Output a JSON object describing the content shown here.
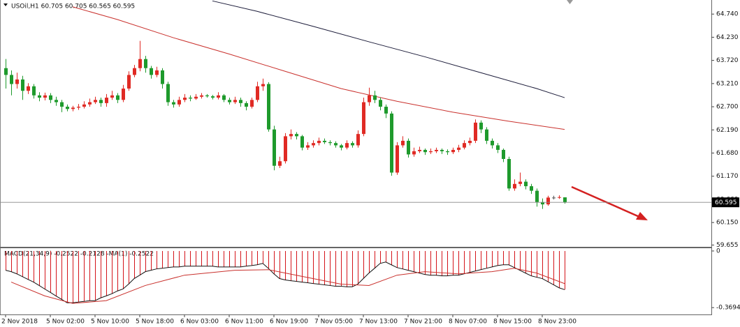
{
  "chart_data": {
    "type": "candlestick",
    "header": "USOil,H1  60.705 60.705 60.565 60.595",
    "categories": [
      "2 Nov 2018",
      null,
      null,
      null,
      null,
      null,
      null,
      null,
      "5 Nov 02:00",
      null,
      null,
      null,
      null,
      null,
      null,
      null,
      "5 Nov 10:00",
      null,
      null,
      null,
      null,
      null,
      null,
      null,
      "5 Nov 18:00",
      null,
      null,
      null,
      null,
      null,
      null,
      null,
      "6 Nov 03:00",
      null,
      null,
      null,
      null,
      null,
      null,
      null,
      "6 Nov 11:00",
      null,
      null,
      null,
      null,
      null,
      null,
      null,
      "6 Nov 19:00",
      null,
      null,
      null,
      null,
      null,
      null,
      null,
      "7 Nov 05:00",
      null,
      null,
      null,
      null,
      null,
      null,
      null,
      "7 Nov 13:00",
      null,
      null,
      null,
      null,
      null,
      null,
      null,
      "7 Nov 21:00",
      null,
      null,
      null,
      null,
      null,
      null,
      null,
      "8 Nov 07:00",
      null,
      null,
      null,
      null,
      null,
      null,
      null,
      "8 Nov 15:00",
      null,
      null,
      null,
      null,
      null,
      null,
      null,
      "8 Nov 23:00",
      null,
      null,
      null,
      null
    ],
    "candles": [
      [
        63.55,
        63.75,
        63.1,
        63.4
      ],
      [
        63.4,
        63.5,
        62.95,
        63.2
      ],
      [
        63.2,
        63.45,
        63.1,
        63.3
      ],
      [
        63.3,
        63.38,
        62.85,
        63.05
      ],
      [
        63.05,
        63.22,
        62.98,
        63.15
      ],
      [
        63.15,
        63.2,
        62.88,
        62.95
      ],
      [
        62.95,
        63.02,
        62.82,
        62.9
      ],
      [
        62.9,
        63.01,
        62.84,
        62.95
      ],
      [
        62.95,
        63.0,
        62.78,
        62.85
      ],
      [
        62.85,
        62.92,
        62.72,
        62.8
      ],
      [
        62.8,
        62.85,
        62.58,
        62.7
      ],
      [
        62.7,
        62.75,
        62.6,
        62.65
      ],
      [
        62.65,
        62.72,
        62.6,
        62.68
      ],
      [
        62.68,
        62.76,
        62.63,
        62.7
      ],
      [
        62.7,
        62.82,
        62.66,
        62.75
      ],
      [
        62.75,
        62.88,
        62.7,
        62.8
      ],
      [
        62.8,
        62.92,
        62.76,
        62.85
      ],
      [
        62.85,
        62.9,
        62.7,
        62.78
      ],
      [
        62.78,
        62.98,
        62.7,
        62.9
      ],
      [
        62.9,
        63.05,
        62.85,
        62.95
      ],
      [
        62.95,
        63.0,
        62.78,
        62.85
      ],
      [
        62.85,
        63.18,
        62.8,
        63.1
      ],
      [
        63.1,
        63.48,
        63.05,
        63.4
      ],
      [
        63.4,
        63.62,
        63.35,
        63.55
      ],
      [
        63.55,
        64.15,
        63.48,
        63.75
      ],
      [
        63.75,
        63.82,
        63.45,
        63.55
      ],
      [
        63.55,
        63.6,
        63.32,
        63.4
      ],
      [
        63.4,
        63.58,
        63.35,
        63.5
      ],
      [
        63.5,
        63.55,
        63.1,
        63.2
      ],
      [
        63.2,
        63.25,
        62.72,
        62.8
      ],
      [
        62.8,
        62.85,
        62.68,
        62.75
      ],
      [
        62.75,
        62.92,
        62.7,
        62.85
      ],
      [
        62.85,
        62.98,
        62.8,
        62.9
      ],
      [
        62.9,
        62.95,
        62.82,
        62.88
      ],
      [
        62.88,
        62.98,
        62.85,
        62.92
      ],
      [
        62.92,
        63.0,
        62.88,
        62.95
      ],
      [
        62.95,
        62.98,
        62.9,
        62.93
      ],
      [
        62.93,
        62.96,
        62.86,
        62.9
      ],
      [
        62.9,
        63.02,
        62.86,
        62.95
      ],
      [
        62.95,
        62.98,
        62.8,
        62.85
      ],
      [
        62.85,
        62.9,
        62.75,
        62.8
      ],
      [
        62.8,
        62.92,
        62.76,
        62.85
      ],
      [
        62.85,
        62.9,
        62.7,
        62.78
      ],
      [
        62.78,
        62.82,
        62.62,
        62.7
      ],
      [
        62.7,
        62.9,
        62.66,
        62.85
      ],
      [
        62.85,
        63.25,
        62.8,
        63.15
      ],
      [
        63.15,
        63.32,
        63.05,
        63.2
      ],
      [
        63.2,
        63.24,
        62.15,
        62.2
      ],
      [
        62.2,
        62.28,
        61.3,
        61.4
      ],
      [
        61.4,
        61.6,
        61.35,
        61.5
      ],
      [
        61.5,
        62.12,
        61.45,
        62.05
      ],
      [
        62.05,
        62.2,
        61.98,
        62.1
      ],
      [
        62.1,
        62.14,
        61.98,
        62.05
      ],
      [
        62.05,
        62.08,
        61.74,
        61.8
      ],
      [
        61.8,
        61.92,
        61.75,
        61.85
      ],
      [
        61.85,
        61.96,
        61.8,
        61.9
      ],
      [
        61.9,
        62.02,
        61.85,
        61.95
      ],
      [
        61.95,
        62.0,
        61.88,
        61.92
      ],
      [
        61.92,
        61.96,
        61.85,
        61.9
      ],
      [
        61.9,
        61.94,
        61.8,
        61.85
      ],
      [
        61.85,
        61.88,
        61.74,
        61.8
      ],
      [
        61.8,
        61.96,
        61.76,
        61.9
      ],
      [
        61.9,
        61.94,
        61.8,
        61.85
      ],
      [
        61.85,
        62.18,
        61.8,
        62.1
      ],
      [
        62.1,
        62.9,
        62.05,
        62.8
      ],
      [
        62.8,
        63.12,
        62.72,
        62.95
      ],
      [
        62.95,
        63.05,
        62.78,
        62.85
      ],
      [
        62.85,
        62.9,
        62.62,
        62.7
      ],
      [
        62.7,
        62.75,
        62.45,
        62.55
      ],
      [
        62.55,
        62.6,
        61.18,
        61.25
      ],
      [
        61.25,
        61.92,
        61.2,
        61.85
      ],
      [
        61.85,
        62.05,
        61.8,
        61.95
      ],
      [
        61.95,
        62.0,
        61.58,
        61.65
      ],
      [
        61.65,
        61.8,
        61.6,
        61.72
      ],
      [
        61.72,
        61.82,
        61.68,
        61.75
      ],
      [
        61.75,
        61.78,
        61.64,
        61.7
      ],
      [
        61.7,
        61.78,
        61.66,
        61.72
      ],
      [
        61.72,
        61.8,
        61.68,
        61.75
      ],
      [
        61.75,
        61.78,
        61.66,
        61.72
      ],
      [
        61.72,
        61.76,
        61.64,
        61.7
      ],
      [
        61.7,
        61.8,
        61.66,
        61.75
      ],
      [
        61.75,
        61.86,
        61.7,
        61.8
      ],
      [
        61.8,
        61.96,
        61.76,
        61.9
      ],
      [
        61.9,
        62.02,
        61.85,
        61.95
      ],
      [
        61.95,
        62.42,
        61.9,
        62.35
      ],
      [
        62.35,
        62.4,
        62.12,
        62.2
      ],
      [
        62.2,
        62.25,
        61.88,
        61.95
      ],
      [
        61.95,
        62.0,
        61.78,
        61.85
      ],
      [
        61.85,
        61.9,
        61.68,
        61.75
      ],
      [
        61.75,
        61.78,
        61.48,
        61.55
      ],
      [
        61.55,
        61.6,
        60.85,
        60.9
      ],
      [
        60.9,
        61.1,
        60.85,
        61.0
      ],
      [
        61.0,
        61.25,
        60.95,
        61.05
      ],
      [
        61.05,
        61.1,
        60.88,
        60.95
      ],
      [
        60.95,
        61.0,
        60.78,
        60.85
      ],
      [
        60.85,
        60.9,
        60.5,
        60.6
      ],
      [
        60.6,
        60.68,
        60.45,
        60.55
      ],
      [
        60.55,
        60.74,
        60.52,
        60.7
      ],
      [
        60.7,
        60.74,
        60.66,
        60.7
      ],
      [
        60.7,
        60.75,
        60.67,
        60.71
      ],
      [
        60.705,
        60.705,
        60.565,
        60.595
      ]
    ],
    "up_color": "#e02a24",
    "down_color": "#1e9a2c",
    "ylim": [
      59.6,
      65.05
    ],
    "yticks": [
      {
        "value": 64.74,
        "label": "64.740"
      },
      {
        "value": 64.23,
        "label": "64.230"
      },
      {
        "value": 63.72,
        "label": "63.720"
      },
      {
        "value": 63.21,
        "label": "63.210"
      },
      {
        "value": 62.7,
        "label": "62.700"
      },
      {
        "value": 62.19,
        "label": "62.190"
      },
      {
        "value": 61.68,
        "label": "61.680"
      },
      {
        "value": 61.17,
        "label": "61.170"
      },
      {
        "value": 60.66,
        "label": "60.660"
      },
      {
        "value": 60.15,
        "label": "60.150"
      },
      {
        "value": 59.655,
        "label": "59.655"
      }
    ],
    "current_price": 60.595,
    "moving_averages": [
      {
        "color": "#c9302c",
        "x": [
          12,
          20,
          30,
          40,
          50,
          60,
          70,
          80,
          90,
          100
        ],
        "values": [
          64.9,
          64.62,
          64.22,
          63.86,
          63.48,
          63.1,
          62.82,
          62.58,
          62.38,
          62.2
        ]
      },
      {
        "color": "#1c1c3a",
        "x": [
          37,
          45,
          55,
          65,
          75,
          85,
          95,
          100
        ],
        "values": [
          65.03,
          64.8,
          64.47,
          64.13,
          63.8,
          63.45,
          63.1,
          62.9
        ]
      }
    ],
    "macd": {
      "title": "MACD(21,34,9) -0.2522 -0.2128 -MA(1) -0.2522",
      "ylim": [
        -0.414,
        0.018
      ],
      "yticks": [
        0,
        -0.3694
      ],
      "histogram_color": "#d4141a",
      "main_color": "#111111",
      "histogram": [
        -0.126,
        -0.135,
        -0.149,
        -0.167,
        -0.185,
        -0.203,
        -0.225,
        -0.248,
        -0.27,
        -0.293,
        -0.315,
        -0.338,
        -0.338,
        -0.333,
        -0.329,
        -0.324,
        -0.324,
        -0.306,
        -0.293,
        -0.279,
        -0.261,
        -0.248,
        -0.216,
        -0.18,
        -0.158,
        -0.135,
        -0.126,
        -0.117,
        -0.113,
        -0.108,
        -0.104,
        -0.104,
        -0.099,
        -0.099,
        -0.099,
        -0.099,
        -0.099,
        -0.099,
        -0.104,
        -0.104,
        -0.104,
        -0.104,
        -0.104,
        -0.099,
        -0.095,
        -0.09,
        -0.081,
        -0.113,
        -0.149,
        -0.18,
        -0.189,
        -0.194,
        -0.198,
        -0.203,
        -0.207,
        -0.212,
        -0.216,
        -0.221,
        -0.225,
        -0.23,
        -0.23,
        -0.234,
        -0.234,
        -0.216,
        -0.18,
        -0.144,
        -0.113,
        -0.081,
        -0.072,
        -0.09,
        -0.108,
        -0.117,
        -0.126,
        -0.135,
        -0.144,
        -0.153,
        -0.158,
        -0.158,
        -0.162,
        -0.162,
        -0.158,
        -0.158,
        -0.149,
        -0.14,
        -0.131,
        -0.122,
        -0.113,
        -0.104,
        -0.095,
        -0.09,
        -0.09,
        -0.108,
        -0.126,
        -0.144,
        -0.162,
        -0.171,
        -0.18,
        -0.2,
        -0.22,
        -0.24,
        -0.2522
      ],
      "signal_color": "#c9302c",
      "signal": {
        "x": [
          1,
          7,
          12,
          18,
          25,
          32,
          41,
          47,
          52,
          60,
          65,
          70,
          75,
          81,
          87,
          91,
          95,
          100
        ],
        "values": [
          -0.203,
          -0.293,
          -0.342,
          -0.324,
          -0.225,
          -0.158,
          -0.126,
          -0.122,
          -0.158,
          -0.216,
          -0.225,
          -0.158,
          -0.135,
          -0.149,
          -0.135,
          -0.113,
          -0.144,
          -0.2128
        ]
      }
    }
  }
}
